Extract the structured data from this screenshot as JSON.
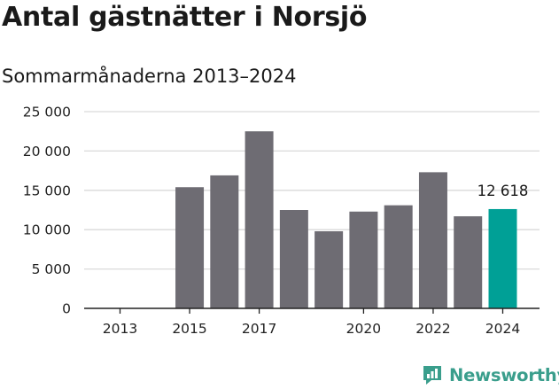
{
  "header": {
    "title": "Antal gästnätter i Norsjö",
    "subtitle": "Sommarmånaderna 2013–2024"
  },
  "colors": {
    "bar": "#6e6c73",
    "highlight": "#00a096",
    "brand": "#3a9e8c",
    "grid": "#d9d9d9",
    "axis": "#222222"
  },
  "chart_data": {
    "type": "bar",
    "categories": [
      "2013",
      "2014",
      "2015",
      "2016",
      "2017",
      "2018",
      "2019",
      "2020",
      "2021",
      "2022",
      "2023",
      "2024"
    ],
    "values": [
      null,
      null,
      15400,
      16900,
      22500,
      12500,
      9800,
      12300,
      13100,
      17300,
      11700,
      12618
    ],
    "highlight_index": 11,
    "title": "Antal gästnätter i Norsjö",
    "subtitle": "Sommarmånaderna 2013–2024",
    "xlabel": "",
    "ylabel": "",
    "ylim": [
      0,
      25000
    ],
    "y_ticks": [
      0,
      5000,
      10000,
      15000,
      20000,
      25000
    ],
    "y_tick_labels": [
      "0",
      "5 000",
      "10 000",
      "15 000",
      "20 000",
      "25 000"
    ],
    "x_tick_labels": [
      "2013",
      "2015",
      "2017",
      "2020",
      "2022",
      "2024"
    ],
    "data_labels": [
      {
        "category": "2024",
        "text": "12 618"
      }
    ],
    "grid": true,
    "legend": "none"
  },
  "footer": {
    "brand_name": "Newsworthy",
    "brand_icon": "newsworthy-logo-icon"
  }
}
